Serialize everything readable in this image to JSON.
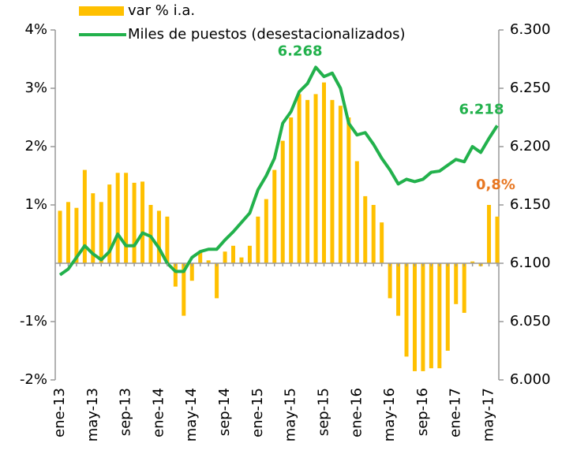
{
  "chart_data": {
    "type": "bar",
    "categories": [
      "ene-13",
      null,
      null,
      null,
      "may-13",
      null,
      null,
      null,
      "sep-13",
      null,
      null,
      null,
      "ene-14",
      null,
      null,
      null,
      "may-14",
      null,
      null,
      null,
      "sep-14",
      null,
      null,
      null,
      "ene-15",
      null,
      null,
      null,
      "may-15",
      null,
      null,
      null,
      "sep-15",
      null,
      null,
      null,
      "ene-16",
      null,
      null,
      null,
      "may-16",
      null,
      null,
      null,
      "sep-16",
      null,
      null,
      null,
      "ene-17",
      null,
      null,
      null,
      "may-17",
      null
    ],
    "series": [
      {
        "name": "var % i.a.",
        "type": "bar",
        "color": "#ffc000",
        "axis": "y",
        "values": [
          0.9,
          1.05,
          0.95,
          1.6,
          1.2,
          1.05,
          1.35,
          1.55,
          1.55,
          1.38,
          1.4,
          1.0,
          0.9,
          0.8,
          -0.4,
          -0.9,
          -0.3,
          0.2,
          0.05,
          -0.6,
          0.2,
          0.3,
          0.1,
          0.3,
          0.8,
          1.1,
          1.6,
          2.1,
          2.5,
          2.9,
          2.8,
          2.9,
          3.1,
          2.8,
          2.7,
          2.5,
          1.75,
          1.15,
          1.0,
          0.7,
          -0.6,
          -0.9,
          -1.6,
          -1.85,
          -1.85,
          -1.8,
          -1.8,
          -1.5,
          -0.7,
          -0.85,
          0.03,
          -0.05,
          1.0,
          0.8
        ],
        "value_labels": [
          null,
          null,
          null,
          null,
          null,
          null,
          null,
          null,
          null,
          null,
          null,
          null,
          null,
          null,
          null,
          null,
          null,
          null,
          null,
          null,
          null,
          null,
          null,
          null,
          null,
          null,
          null,
          null,
          null,
          null,
          null,
          null,
          null,
          null,
          null,
          null,
          null,
          null,
          null,
          null,
          null,
          null,
          null,
          null,
          null,
          null,
          null,
          null,
          null,
          null,
          null,
          null,
          null,
          "0,8%"
        ],
        "label_color": "#e87722"
      },
      {
        "name": "Miles de puestos (desestacionalizados)",
        "type": "line",
        "color": "#22b14c",
        "axis": "y2",
        "values": [
          6090,
          6095,
          6105,
          6115,
          6108,
          6103,
          6110,
          6125,
          6115,
          6115,
          6126,
          6123,
          6113,
          6100,
          6093,
          6093,
          6105,
          6110,
          6112,
          6112,
          6120,
          6127,
          6135,
          6143,
          6163,
          6175,
          6190,
          6220,
          6230,
          6247,
          6254,
          6268,
          6260,
          6263,
          6250,
          6220,
          6210,
          6212,
          6202,
          6190,
          6180,
          6168,
          6172,
          6170,
          6172,
          6178,
          6179,
          6184,
          6189,
          6187,
          6200,
          6195,
          6207,
          6218
        ],
        "value_labels": [
          null,
          null,
          null,
          null,
          null,
          null,
          null,
          null,
          null,
          null,
          null,
          null,
          null,
          null,
          null,
          null,
          null,
          null,
          null,
          null,
          null,
          null,
          null,
          null,
          null,
          null,
          null,
          null,
          null,
          null,
          null,
          "6.268",
          null,
          null,
          null,
          null,
          null,
          null,
          null,
          null,
          null,
          null,
          null,
          null,
          null,
          null,
          null,
          null,
          null,
          null,
          null,
          null,
          null,
          "6.218"
        ]
      }
    ],
    "ylim": [
      -2,
      4
    ],
    "yticks": [
      {
        "value": 4,
        "label": "4%"
      },
      {
        "value": 3,
        "label": "3%"
      },
      {
        "value": 2,
        "label": "2%"
      },
      {
        "value": 1,
        "label": "1%"
      },
      {
        "value": -1,
        "label": "-1%"
      },
      {
        "value": -2,
        "label": "-2%"
      }
    ],
    "y2lim": [
      6000,
      6300
    ],
    "y2ticks": [
      {
        "value": 6300,
        "label": "6.300"
      },
      {
        "value": 6250,
        "label": "6.250"
      },
      {
        "value": 6200,
        "label": "6.200"
      },
      {
        "value": 6150,
        "label": "6.150"
      },
      {
        "value": 6100,
        "label": "6.100"
      },
      {
        "value": 6050,
        "label": "6.050"
      },
      {
        "value": 6000,
        "label": "6.000"
      }
    ]
  }
}
